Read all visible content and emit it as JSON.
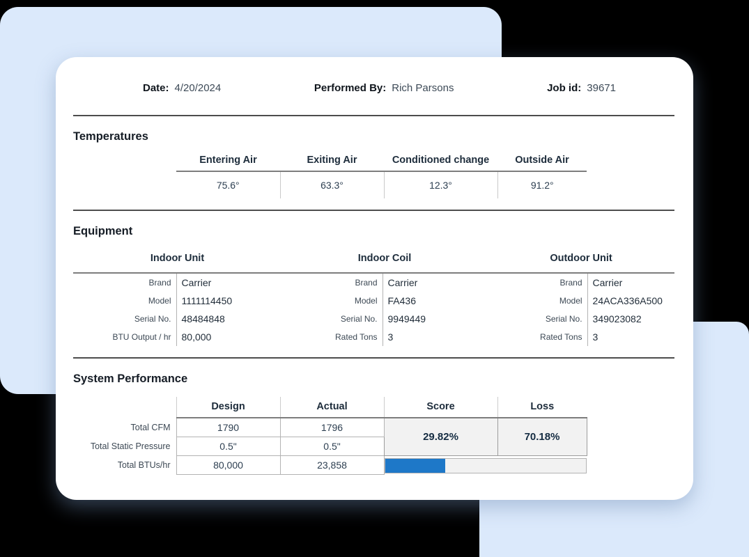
{
  "header": {
    "date_label": "Date:",
    "date_value": "4/20/2024",
    "performed_label": "Performed By:",
    "performed_value": "Rich Parsons",
    "job_label": "Job id:",
    "job_value": "39671"
  },
  "temperatures": {
    "title": "Temperatures",
    "columns": [
      "Entering Air",
      "Exiting Air",
      "Conditioned change",
      "Outside Air"
    ],
    "values": [
      "75.6°",
      "63.3°",
      "12.3°",
      "91.2°"
    ]
  },
  "equipment": {
    "title": "Equipment",
    "groups": [
      {
        "name": "Indoor Unit",
        "rows": [
          [
            "Brand",
            "Carrier"
          ],
          [
            "Model",
            "1111114450"
          ],
          [
            "Serial No.",
            "48484848"
          ],
          [
            "BTU Output / hr",
            "80,000"
          ]
        ]
      },
      {
        "name": "Indoor Coil",
        "rows": [
          [
            "Brand",
            "Carrier"
          ],
          [
            "Model",
            "FA436"
          ],
          [
            "Serial No.",
            "9949449"
          ],
          [
            "Rated Tons",
            "3"
          ]
        ]
      },
      {
        "name": "Outdoor Unit",
        "rows": [
          [
            "Brand",
            "Carrier"
          ],
          [
            "Model",
            "24ACA336A500"
          ],
          [
            "Serial No.",
            "349023082"
          ],
          [
            "Rated Tons",
            "3"
          ]
        ]
      }
    ]
  },
  "performance": {
    "title": "System Performance",
    "columns": [
      "Design",
      "Actual",
      "Score",
      "Loss"
    ],
    "rows": [
      {
        "label": "Total CFM",
        "design": "1790",
        "actual": "1796"
      },
      {
        "label": "Total Static Pressure",
        "design": "0.5\"",
        "actual": "0.5\""
      },
      {
        "label": "Total BTUs/hr",
        "design": "80,000",
        "actual": "23,858"
      }
    ],
    "score": "29.82%",
    "loss": "70.18%",
    "progress_percent": 30,
    "progress_fill_color": "#1e78c8"
  },
  "colors": {
    "background": "#000000",
    "panel_blue": "#dbe9fb",
    "card": "#ffffff",
    "accent_blue": "#1e78c8"
  }
}
